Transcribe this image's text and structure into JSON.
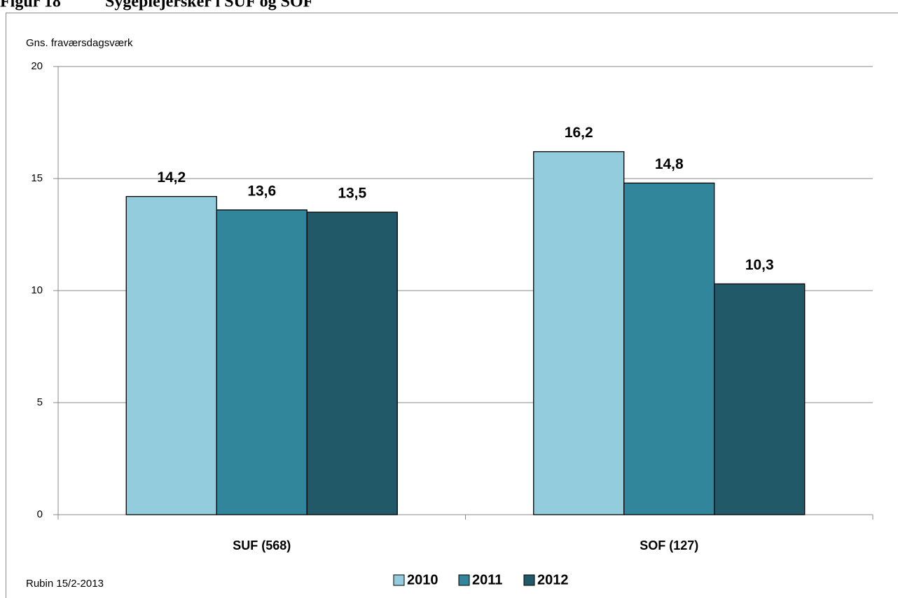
{
  "chart_data": {
    "type": "bar",
    "title_number": "Figur 18",
    "title": "Sygeplejersker i SUF og SOF",
    "ylabel": "Gns. fraværsdagsværk",
    "source": "Rubin 15/2-2013",
    "categories": [
      "SUF (568)",
      "SOF (127)"
    ],
    "series": [
      {
        "name": "2010",
        "color": "#93cddd",
        "values": [
          14.2,
          16.2
        ],
        "value_labels": [
          "14,2",
          "16,2"
        ]
      },
      {
        "name": "2011",
        "color": "#31869c",
        "values": [
          13.6,
          14.8
        ],
        "value_labels": [
          "13,6",
          "14,8"
        ]
      },
      {
        "name": "2012",
        "color": "#215968",
        "values": [
          13.5,
          10.3
        ],
        "value_labels": [
          "13,5",
          "10,3"
        ]
      }
    ],
    "ylim": [
      0,
      20
    ],
    "yticks": [
      0,
      5,
      10,
      15,
      20
    ],
    "grid": true,
    "legend": "bottom"
  }
}
